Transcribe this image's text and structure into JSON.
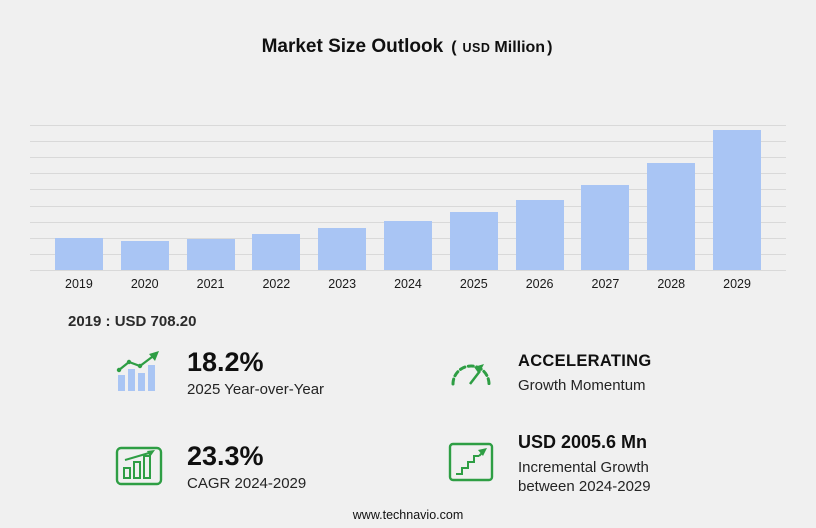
{
  "title": {
    "main": "Market Size Outlook",
    "unit_open": "(",
    "unit_currency": "USD",
    "unit_word": "Million",
    "unit_close": ")"
  },
  "chart_data": {
    "type": "bar",
    "title": "Market Size Outlook (USD Million)",
    "categories": [
      "2019",
      "2020",
      "2021",
      "2022",
      "2023",
      "2024",
      "2025",
      "2026",
      "2027",
      "2028",
      "2029"
    ],
    "values": [
      708.2,
      640.0,
      695.0,
      800.0,
      930.0,
      1082.9,
      1280.0,
      1545.0,
      1878.0,
      2361.0,
      3088.5
    ],
    "xlabel": "",
    "ylabel": "USD Million",
    "ylim": [
      0,
      3200
    ],
    "grid": true,
    "gridline_count": 10,
    "legend": "none",
    "bar_color": "#a9c5f4"
  },
  "annotation": {
    "base_year_note": "2019 : USD  708.20"
  },
  "stats": {
    "yoy": {
      "value": "18.2%",
      "label": "2025 Year-over-Year",
      "icon": "bar-chart-trend-icon"
    },
    "momentum": {
      "value": "ACCELERATING",
      "label": "Growth Momentum",
      "icon": "speedometer-icon"
    },
    "cagr": {
      "value": "23.3%",
      "label": "CAGR 2024-2029",
      "icon": "chart-growth-icon"
    },
    "incremental": {
      "value": "USD 2005.6 Mn",
      "label": "Incremental Growth between 2024-2029",
      "icon": "step-arrow-icon"
    }
  },
  "footer": {
    "url": "www.technavio.com"
  },
  "colors": {
    "background": "#f0f0f0",
    "gridline": "#d9d9d9",
    "bar_blue": "#a9c5f4",
    "accent_green": "#2e9e44"
  }
}
